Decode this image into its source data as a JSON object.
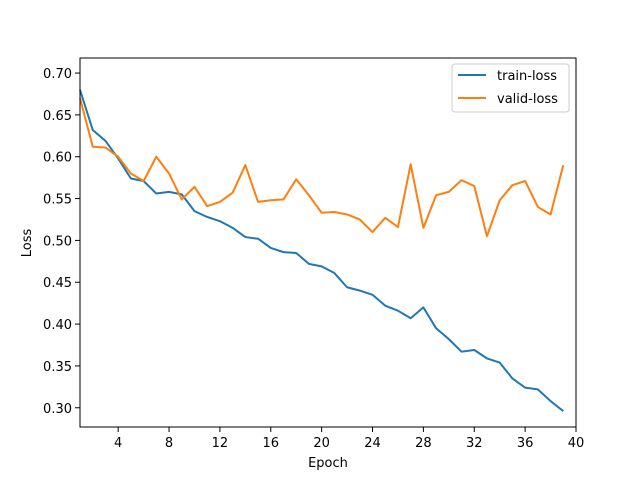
{
  "chart_data": {
    "type": "line",
    "title": "",
    "xlabel": "Epoch",
    "ylabel": "Loss",
    "xlim": [
      1,
      40
    ],
    "ylim": [
      0.277,
      0.718
    ],
    "xticks": [
      4,
      8,
      12,
      16,
      20,
      24,
      28,
      32,
      36,
      40
    ],
    "yticks": [
      0.3,
      0.35,
      0.4,
      0.45,
      0.5,
      0.55,
      0.6,
      0.65,
      0.7
    ],
    "xtick_labels": [
      "4",
      "8",
      "12",
      "16",
      "20",
      "24",
      "28",
      "32",
      "36",
      "40"
    ],
    "ytick_labels": [
      "0.30",
      "0.35",
      "0.40",
      "0.45",
      "0.50",
      "0.55",
      "0.60",
      "0.65",
      "0.70"
    ],
    "grid": false,
    "legend_position": "top-right",
    "x": [
      1,
      2,
      3,
      4,
      5,
      6,
      7,
      8,
      9,
      10,
      11,
      12,
      13,
      14,
      15,
      16,
      17,
      18,
      19,
      20,
      21,
      22,
      23,
      24,
      25,
      26,
      27,
      28,
      29,
      30,
      31,
      32,
      33,
      34,
      35,
      36,
      37,
      38,
      39
    ],
    "series": [
      {
        "name": "train-loss",
        "color": "#1f77b4",
        "values": [
          0.68,
          0.632,
          0.619,
          0.598,
          0.574,
          0.571,
          0.556,
          0.558,
          0.555,
          0.535,
          0.528,
          0.523,
          0.515,
          0.504,
          0.502,
          0.491,
          0.486,
          0.485,
          0.472,
          0.469,
          0.461,
          0.444,
          0.44,
          0.435,
          0.422,
          0.416,
          0.407,
          0.42,
          0.395,
          0.382,
          0.367,
          0.369,
          0.359,
          0.354,
          0.335,
          0.324,
          0.322,
          0.308,
          0.296
        ]
      },
      {
        "name": "valid-loss",
        "color": "#ff7f0e",
        "values": [
          0.67,
          0.612,
          0.611,
          0.6,
          0.58,
          0.571,
          0.6,
          0.58,
          0.549,
          0.564,
          0.541,
          0.546,
          0.557,
          0.59,
          0.546,
          0.548,
          0.549,
          0.573,
          0.554,
          0.533,
          0.534,
          0.531,
          0.525,
          0.51,
          0.527,
          0.516,
          0.591,
          0.515,
          0.554,
          0.558,
          0.572,
          0.565,
          0.505,
          0.548,
          0.566,
          0.571,
          0.54,
          0.531,
          0.59
        ]
      }
    ]
  }
}
